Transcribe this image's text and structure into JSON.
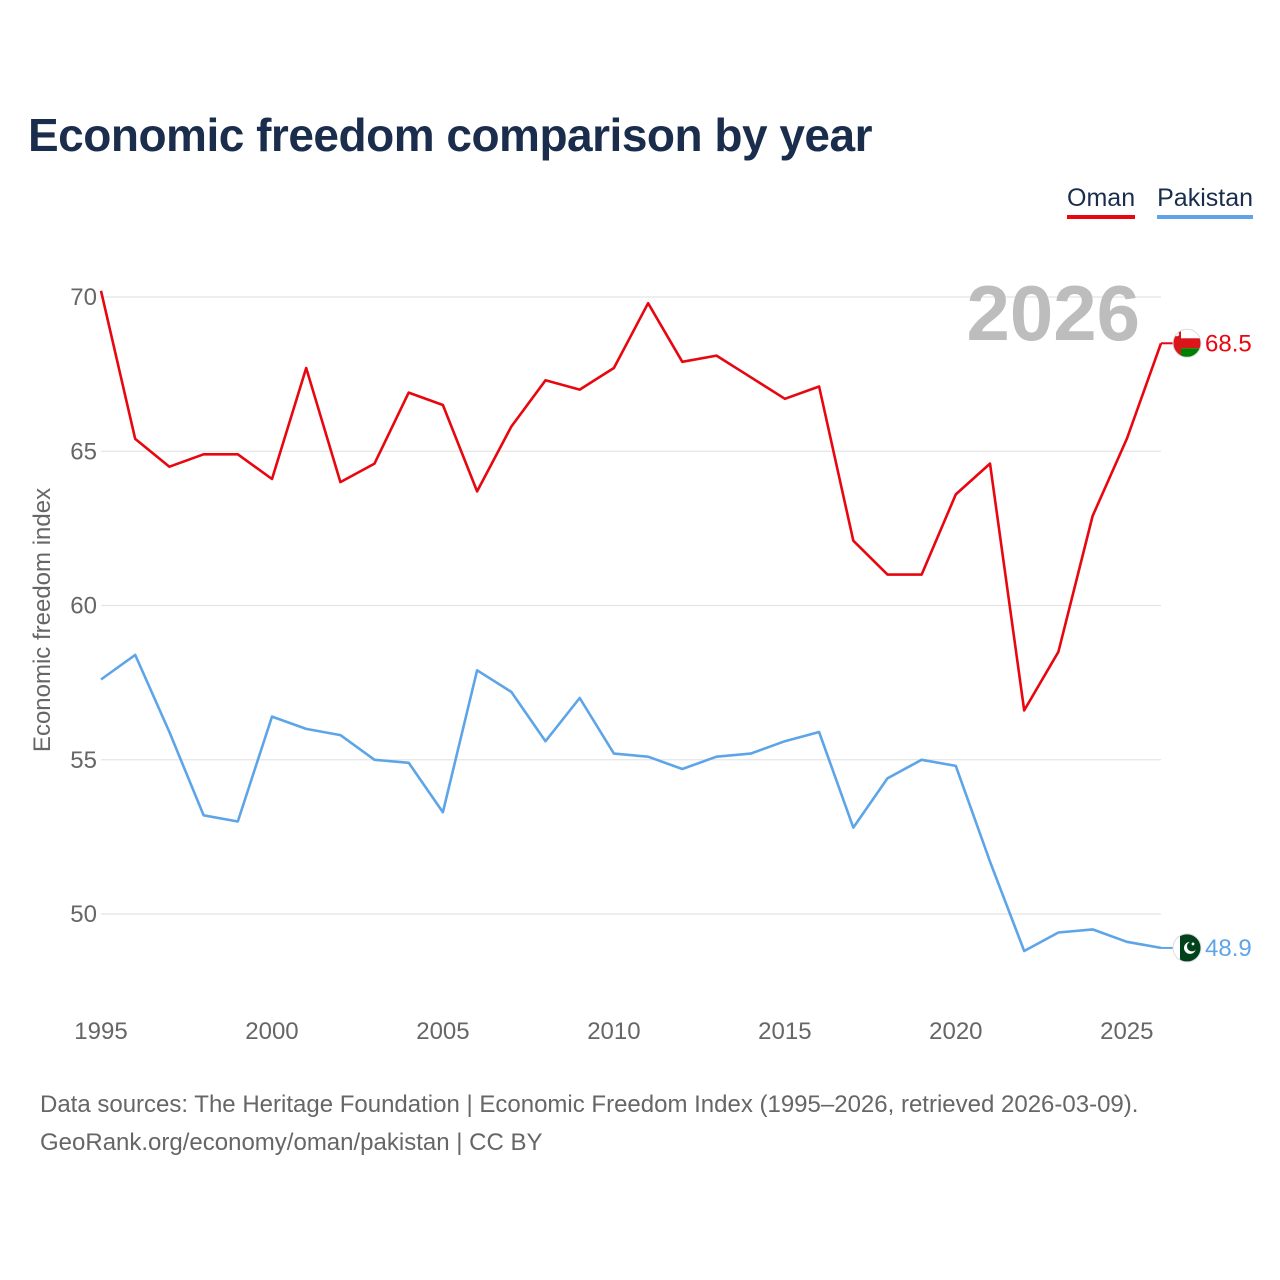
{
  "title": "Economic freedom comparison by year",
  "legend": [
    {
      "label": "Oman",
      "color": "#e8060f"
    },
    {
      "label": "Pakistan",
      "color": "#5da5e8"
    }
  ],
  "footer": {
    "line1": "Data sources: The Heritage Foundation | Economic Freedom Index (1995–2026, retrieved 2026-03-09).",
    "line2": "GeoRank.org/economy/oman/pakistan | CC BY"
  },
  "chart_data": {
    "type": "line",
    "title": "Economic freedom comparison by year",
    "xlabel": "",
    "ylabel": "Economic freedom index",
    "year_label": "2026",
    "x": [
      1995,
      1996,
      1997,
      1998,
      1999,
      2000,
      2001,
      2002,
      2003,
      2004,
      2005,
      2006,
      2007,
      2008,
      2009,
      2010,
      2011,
      2012,
      2013,
      2014,
      2015,
      2016,
      2017,
      2018,
      2019,
      2020,
      2021,
      2022,
      2023,
      2024,
      2025,
      2026
    ],
    "xlim": [
      1995,
      2026
    ],
    "ylim": [
      46.5,
      71.5
    ],
    "x_ticks": [
      1995,
      2000,
      2005,
      2010,
      2015,
      2020,
      2025
    ],
    "y_ticks": [
      50,
      55,
      60,
      65,
      70
    ],
    "grid": true,
    "series": [
      {
        "name": "Oman",
        "color": "#e8060f",
        "end_label": "68.5",
        "flag": "oman-flag-icon",
        "values": [
          70.2,
          65.4,
          64.5,
          64.9,
          64.9,
          64.1,
          67.7,
          64.0,
          64.6,
          66.9,
          66.5,
          63.7,
          65.8,
          67.3,
          67.0,
          67.7,
          69.8,
          67.9,
          68.1,
          67.4,
          66.7,
          67.1,
          62.1,
          61.0,
          61.0,
          63.6,
          64.6,
          56.6,
          58.5,
          62.9,
          65.4,
          68.5
        ]
      },
      {
        "name": "Pakistan",
        "color": "#5da5e8",
        "end_label": "48.9",
        "flag": "pakistan-flag-icon",
        "values": [
          57.6,
          58.4,
          55.9,
          53.2,
          53.0,
          56.4,
          56.0,
          55.8,
          55.0,
          54.9,
          53.3,
          57.9,
          57.2,
          55.6,
          57.0,
          55.2,
          55.1,
          54.7,
          55.1,
          55.2,
          55.6,
          55.9,
          52.8,
          54.4,
          55.0,
          54.8,
          51.7,
          48.8,
          49.4,
          49.5,
          49.1,
          48.9
        ]
      }
    ]
  }
}
